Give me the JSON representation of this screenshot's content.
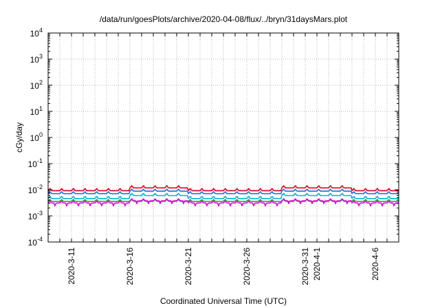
{
  "chart_data": {
    "type": "line",
    "title": "/data/run/goesPlots/archive/2020-04-08/flux/../bryn/31daysMars.plot",
    "xlabel": "Coordinated Universal Time (UTC)",
    "ylabel": "cGy/day",
    "yscale": "log",
    "ylim": [
      0.0001,
      10000
    ],
    "y_ticks": [
      {
        "base": "10",
        "exp": "-4",
        "value": 0.0001
      },
      {
        "base": "10",
        "exp": "-3",
        "value": 0.001
      },
      {
        "base": "10",
        "exp": "-2",
        "value": 0.01
      },
      {
        "base": "10",
        "exp": "-1",
        "value": 0.1
      },
      {
        "base": "10",
        "exp": "0",
        "value": 1
      },
      {
        "base": "10",
        "exp": "1",
        "value": 10
      },
      {
        "base": "10",
        "exp": "2",
        "value": 100
      },
      {
        "base": "10",
        "exp": "3",
        "value": 1000
      },
      {
        "base": "10",
        "exp": "4",
        "value": 10000
      }
    ],
    "xlim": [
      "2020-03-09",
      "2020-04-08"
    ],
    "x_tick_labels": [
      {
        "label": "2020-3-11",
        "date": "2020-03-11"
      },
      {
        "label": "2020-3-16",
        "date": "2020-03-16"
      },
      {
        "label": "2020-3-21",
        "date": "2020-03-21"
      },
      {
        "label": "2020-3-26",
        "date": "2020-03-26"
      },
      {
        "label": "2020-3-31",
        "date": "2020-03-31"
      },
      {
        "label": "2020-4-1",
        "date": "2020-04-01"
      },
      {
        "label": "2020-4-6",
        "date": "2020-04-06"
      }
    ],
    "grid": true,
    "legend": "none",
    "series": [
      {
        "color": "#e8001c",
        "base": 0.0092,
        "amp": 0.22,
        "elevated": [
          [
            2020316,
            2020320
          ],
          [
            2020329,
            2020403
          ]
        ],
        "boost": 0.28
      },
      {
        "color": "#1f6fe0",
        "base": 0.0071,
        "amp": 0.2,
        "elevated": [
          [
            2020316,
            2020320
          ],
          [
            2020329,
            2020403
          ]
        ],
        "boost": 0.24
      },
      {
        "color": "#00b8c8",
        "base": 0.0046,
        "amp": 0.22,
        "elevated": [
          [
            2020316,
            2020320
          ],
          [
            2020329,
            2020403
          ]
        ],
        "boost": 0.3
      },
      {
        "color": "#2aa02a",
        "base": 0.0036,
        "amp": 0.18,
        "elevated": [],
        "boost": 0.0
      },
      {
        "color": "#e800e8",
        "base": 0.0031,
        "amp": 0.2,
        "elevated": [
          [
            2020316,
            2020320
          ],
          [
            2020329,
            2020403
          ]
        ],
        "boost": 0.22
      }
    ]
  }
}
